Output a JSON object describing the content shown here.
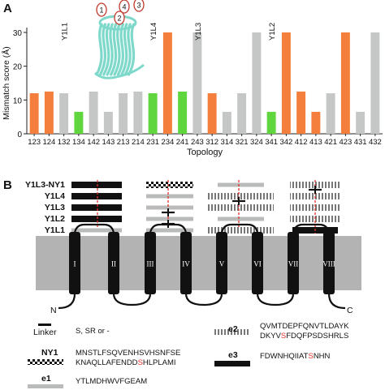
{
  "panelA": {
    "letter": "A",
    "chart_data": {
      "type": "bar",
      "ylabel": "Mismatch score (Å)",
      "xlabel": "Topology",
      "ylim": [
        0,
        30
      ],
      "yticks": [
        0,
        10,
        20,
        30
      ],
      "categories": [
        "123",
        "124",
        "132",
        "134",
        "142",
        "143",
        "213",
        "214",
        "231",
        "234",
        "241",
        "243",
        "312",
        "314",
        "321",
        "324",
        "341",
        "342",
        "412",
        "413",
        "421",
        "423",
        "431",
        "432"
      ],
      "values": [
        12,
        12.5,
        12,
        6.5,
        12.5,
        6.5,
        12,
        12.5,
        12,
        30,
        12.5,
        30,
        12,
        6.5,
        12,
        30,
        6.5,
        30,
        12.5,
        6.5,
        12,
        30,
        6.5,
        30
      ],
      "bar_colors": [
        "orange",
        "orange",
        "gray",
        "green",
        "gray",
        "gray",
        "gray",
        "gray",
        "green",
        "orange",
        "green",
        "gray",
        "orange",
        "gray",
        "gray",
        "gray",
        "green",
        "orange",
        "orange",
        "orange",
        "gray",
        "orange",
        "gray",
        "gray"
      ],
      "annotations": [
        {
          "label": "Y1L1",
          "category": "132"
        },
        {
          "label": "Y1L4",
          "category": "231"
        },
        {
          "label": "Y1L3",
          "category": "243"
        },
        {
          "label": "Y1L2",
          "category": "341"
        }
      ],
      "barrel_labels": [
        "1",
        "2",
        "3",
        "4"
      ]
    },
    "colors": {
      "orange": "#f47e3b",
      "gray": "#c4c7c6",
      "green": "#5fd53e",
      "barrel": "#7fd9cb"
    }
  },
  "panelB": {
    "letter": "B",
    "rows": [
      {
        "label": "Y1L3-NY1",
        "segs": [
          "e3",
          "ny1",
          "e1",
          "ny1",
          "e2"
        ]
      },
      {
        "label": "Y1L4",
        "segs": [
          "e3",
          "e1",
          "e2",
          "e2"
        ]
      },
      {
        "label": "Y1L3",
        "segs": [
          "e3",
          "e1",
          "e2",
          "e2"
        ]
      },
      {
        "label": "Y1L2",
        "segs": [
          "e3",
          "e1",
          "e1",
          "e2"
        ]
      },
      {
        "label": "Y1L1",
        "segs": [
          "e1",
          "e1",
          "e2",
          "e3"
        ]
      }
    ],
    "helices": [
      "I",
      "II",
      "III",
      "IV",
      "V",
      "VI",
      "VII",
      "VIII"
    ],
    "n_term": "N",
    "c_term": "C",
    "legend": [
      {
        "key": "linker",
        "label": "Linker",
        "seq_before": "S, SR or -",
        "seq_hl": "",
        "seq_after": ""
      },
      {
        "key": "ny1",
        "label": "NY1",
        "seq_before": "MNSTLFSQVENHSVHSNFSE\nKNAQLLAFENDD",
        "seq_hl": "S",
        "seq_after": "HLPLAMI"
      },
      {
        "key": "e1",
        "label": "e1",
        "seq_before": "YTLMDHWVFGEAM",
        "seq_hl": "",
        "seq_after": ""
      },
      {
        "key": "e2",
        "label": "e2",
        "seq_before": "QVMTDEPFQNVTLDAYK\nDKYV",
        "seq_hl": "S",
        "seq_after": "FDQFPSDSHRLS"
      },
      {
        "key": "e3",
        "label": "e3",
        "seq_before": "FDWNHQIIAT",
        "seq_hl": "S",
        "seq_after": "NHN"
      }
    ]
  }
}
